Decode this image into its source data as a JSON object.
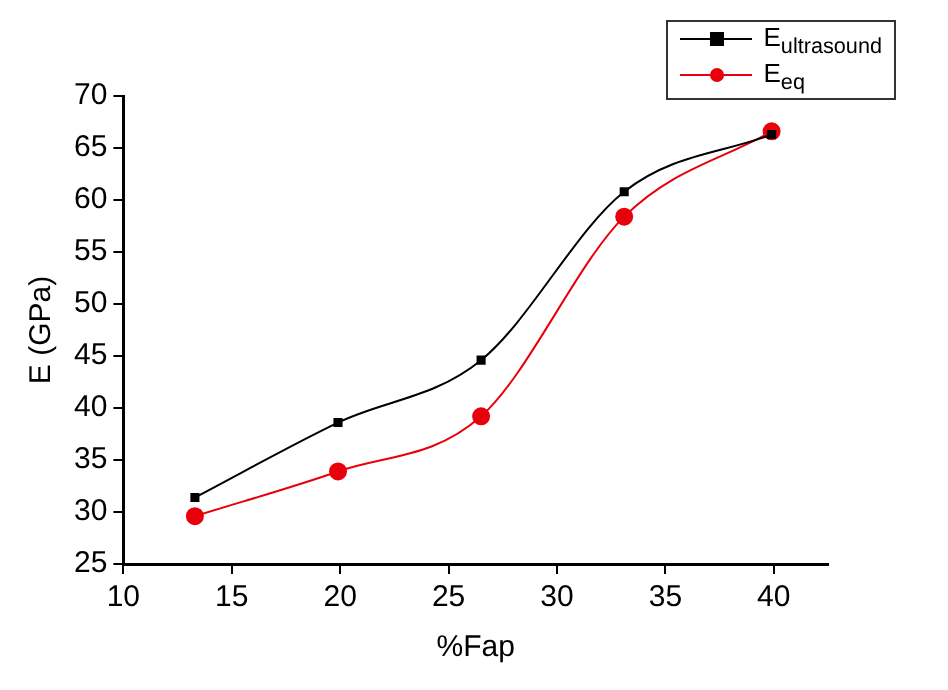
{
  "chart_data": {
    "type": "line",
    "xlabel": "%Fap",
    "ylabel": "E (GPa)",
    "xlim": [
      10,
      42.5
    ],
    "xticks": [
      10,
      15,
      20,
      25,
      30,
      35,
      40
    ],
    "ylim": [
      25,
      70
    ],
    "yticks": [
      25,
      30,
      35,
      40,
      45,
      50,
      55,
      60,
      65,
      70
    ],
    "x": [
      13.3,
      19.9,
      26.5,
      33.1,
      39.9
    ],
    "series": [
      {
        "name": "E$_{ultrasound}$",
        "color": "#000000",
        "marker": "square",
        "values": [
          31.4,
          38.6,
          44.6,
          60.8,
          66.3
        ]
      },
      {
        "name": "E$_{eq}$",
        "color": "#e8000b",
        "marker": "circle",
        "values": [
          29.6,
          33.9,
          39.2,
          58.4,
          66.6
        ]
      }
    ],
    "grid": false,
    "legend": "top right"
  }
}
